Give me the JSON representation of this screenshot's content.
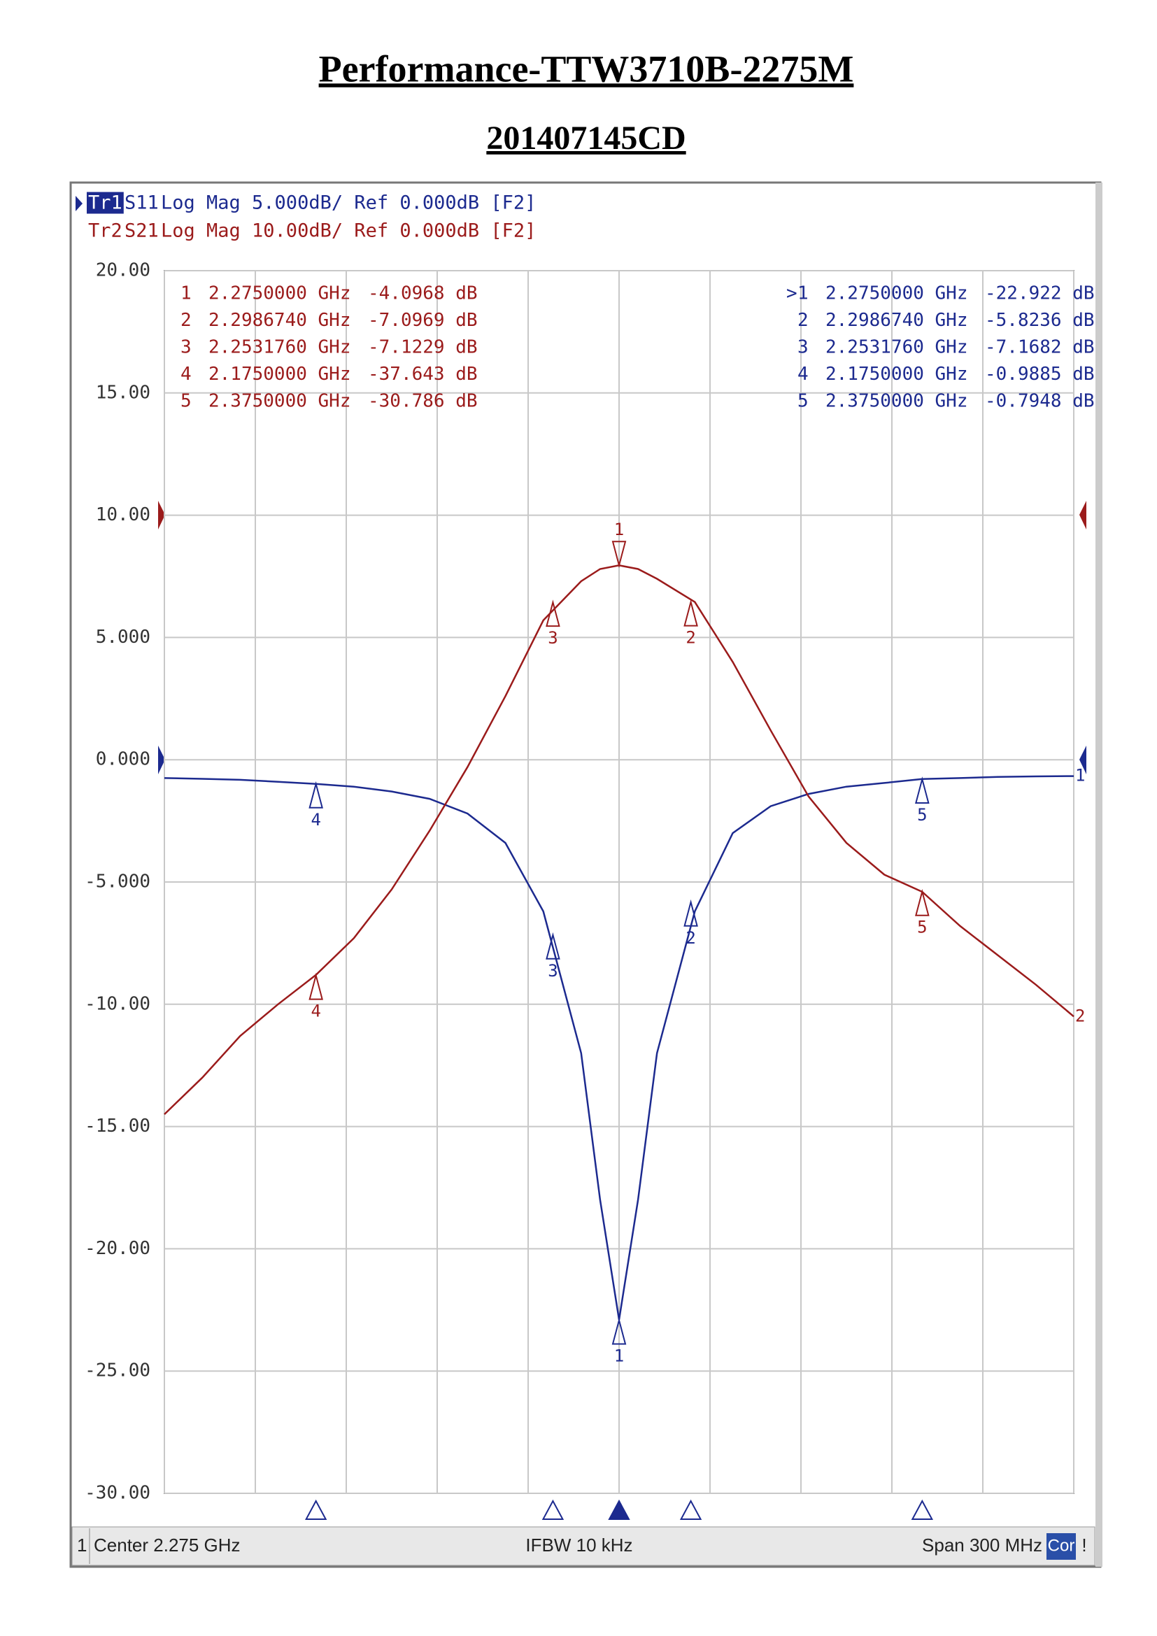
{
  "header": {
    "title": "Performance-TTW3710B-2275M",
    "subtitle": "201407145CD"
  },
  "chart_data": {
    "type": "line",
    "xlim": [
      2.125,
      2.425
    ],
    "xticks": [
      2.125,
      2.155,
      2.185,
      2.215,
      2.245,
      2.275,
      2.305,
      2.335,
      2.365,
      2.395,
      2.425
    ],
    "ylim": [
      -30,
      20
    ],
    "y2lim": [
      -80,
      20
    ],
    "yticks": [
      {
        "value": 20,
        "label": "20.00"
      },
      {
        "value": 15,
        "label": "15.00"
      },
      {
        "value": 10,
        "label": "10.00"
      },
      {
        "value": 5,
        "label": "5.000"
      },
      {
        "value": 0,
        "label": "0.000"
      },
      {
        "value": -5,
        "label": "-5.000"
      },
      {
        "value": -10,
        "label": "-10.00"
      },
      {
        "value": -15,
        "label": "-15.00"
      },
      {
        "value": -20,
        "label": "-20.00"
      },
      {
        "value": -25,
        "label": "-25.00"
      },
      {
        "value": -30,
        "label": "-30.00"
      }
    ],
    "grid": true,
    "x": [
      2.125,
      2.1375,
      2.15,
      2.1625,
      2.175,
      2.1875,
      2.2,
      2.2125,
      2.225,
      2.2375,
      2.25,
      2.2625,
      2.26875,
      2.275,
      2.28125,
      2.2875,
      2.3,
      2.3125,
      2.325,
      2.3375,
      2.35,
      2.3625,
      2.375,
      2.3875,
      2.4,
      2.4125,
      2.425
    ],
    "series": [
      {
        "name": "S11",
        "trace": "Tr1",
        "format": "Log Mag 5.000dB/ Ref 0.000dB [F2]",
        "color": "#1c2a8f",
        "end_label": "1",
        "values": [
          -0.75,
          -0.78,
          -0.82,
          -0.9,
          -0.99,
          -1.1,
          -1.3,
          -1.6,
          -2.2,
          -3.4,
          -6.2,
          -12,
          -18,
          -22.9,
          -18,
          -12,
          -6.2,
          -3.0,
          -1.9,
          -1.4,
          -1.1,
          -0.95,
          -0.79,
          -0.75,
          -0.7,
          -0.68,
          -0.67
        ],
        "markers": {
          "active": ">",
          "ids": [
            "1",
            "2",
            "3",
            "4",
            "5"
          ],
          "x": [
            2.275,
            2.298674,
            2.253176,
            2.175,
            2.375
          ],
          "x_labels": [
            "2.2750000 GHz",
            "2.2986740 GHz",
            "2.2531760 GHz",
            "2.1750000 GHz",
            "2.3750000 GHz"
          ],
          "values": [
            -22.922,
            -5.8236,
            -7.1682,
            -0.9885,
            -0.7948
          ],
          "value_labels": [
            "-22.922 dB",
            "-5.8236 dB",
            "-7.1682 dB",
            "-0.9885 dB",
            "-0.7948 dB"
          ]
        }
      },
      {
        "name": "S21",
        "trace": "Tr2",
        "format": "Log Mag 10.00dB/ Ref 0.000dB [F2]",
        "color": "#9b1b1b",
        "axis": "y2",
        "end_label": "2",
        "values": [
          -49,
          -46,
          -42.6,
          -40,
          -37.6,
          -34.6,
          -30.6,
          -25.8,
          -20.6,
          -14.8,
          -8.6,
          -5.4,
          -4.4,
          -4.1,
          -4.4,
          -5.2,
          -7.1,
          -12,
          -17.6,
          -23,
          -26.8,
          -29.4,
          -30.8,
          -33.6,
          -36,
          -38.4,
          -41
        ],
        "markers": {
          "ids": [
            "1",
            "2",
            "3",
            "4",
            "5"
          ],
          "x": [
            2.275,
            2.298674,
            2.253176,
            2.175,
            2.375
          ],
          "x_labels": [
            "2.2750000 GHz",
            "2.2986740 GHz",
            "2.2531760 GHz",
            "2.1750000 GHz",
            "2.3750000 GHz"
          ],
          "values": [
            -4.0968,
            -7.0969,
            -7.1229,
            -37.643,
            -30.786
          ],
          "value_labels": [
            "-4.0968 dB",
            "-7.0969 dB",
            "-7.1229 dB",
            "-37.643 dB",
            "-30.786 dB"
          ]
        }
      }
    ],
    "footer": {
      "channel": "1",
      "center": "Center 2.275 GHz",
      "ifbw": "IFBW 10 kHz",
      "span": "Span 300 MHz",
      "correction": "Cor",
      "status": "!"
    }
  }
}
